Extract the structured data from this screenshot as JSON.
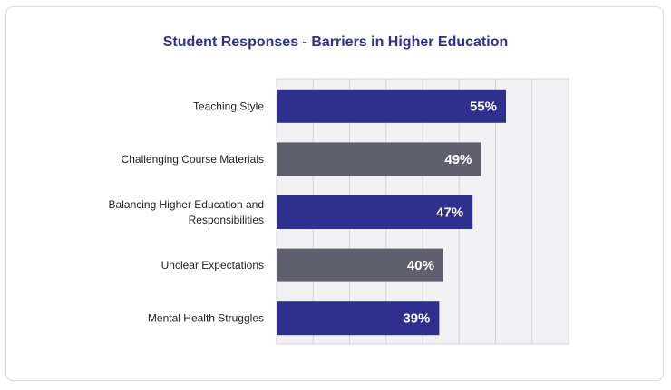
{
  "chart_data": {
    "type": "bar",
    "orientation": "horizontal",
    "title": "Student Responses - Barriers in Higher Education",
    "categories": [
      "Teaching Style",
      "Challenging Course Materials",
      "Balancing Higher Education and Responsibilities",
      "Unclear Expectations",
      "Mental Health Struggles"
    ],
    "category_lines": [
      [
        "Teaching Style"
      ],
      [
        "Challenging Course Materials"
      ],
      [
        "Balancing Higher Education and",
        "Responsibilities"
      ],
      [
        "Unclear Expectations"
      ],
      [
        "Mental Health Struggles"
      ]
    ],
    "values": [
      55,
      49,
      47,
      40,
      39
    ],
    "value_labels": [
      "55%",
      "49%",
      "47%",
      "40%",
      "39%"
    ],
    "xlim": [
      0,
      70
    ],
    "grid": true,
    "colors": [
      "#2e2f8f",
      "#5f5f6e",
      "#2e2f8f",
      "#5f5f6e",
      "#2e2f8f"
    ]
  }
}
